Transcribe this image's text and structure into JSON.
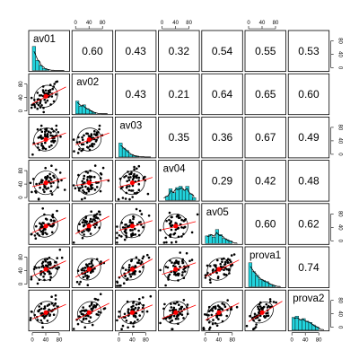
{
  "chart_data": {
    "type": "scatter",
    "subtype": "pairs-panel matrix",
    "variables": [
      "av01",
      "av02",
      "av03",
      "av04",
      "av05",
      "prova1",
      "prova2"
    ],
    "axis_ticks": [
      0,
      40,
      80
    ],
    "axis_range": [
      0,
      100
    ],
    "correlations": [
      [
        "",
        "0.60",
        "0.43",
        "0.32",
        "0.54",
        "0.55",
        "0.53"
      ],
      [
        "",
        "",
        "0.43",
        "0.21",
        "0.64",
        "0.65",
        "0.60"
      ],
      [
        "",
        "",
        "",
        "0.35",
        "0.36",
        "0.67",
        "0.49"
      ],
      [
        "",
        "",
        "",
        "",
        "0.29",
        "0.42",
        "0.48"
      ],
      [
        "",
        "",
        "",
        "",
        "",
        "0.60",
        "0.62"
      ],
      [
        "",
        "",
        "",
        "",
        "",
        "",
        "0.74"
      ],
      [
        "",
        "",
        "",
        "",
        "",
        "",
        ""
      ]
    ],
    "histograms": {
      "av01": [
        0.95,
        0.4,
        0.2,
        0.08,
        0.04,
        0.0,
        0.0,
        0.0,
        0.0,
        0.0
      ],
      "av02": [
        0.5,
        0.3,
        0.35,
        0.2,
        0.12,
        0.05,
        0.0,
        0.0,
        0.0,
        0.0
      ],
      "av03": [
        0.55,
        0.35,
        0.25,
        0.1,
        0.05,
        0.03,
        0.0,
        0.0,
        0.0,
        0.0
      ],
      "av04": [
        0.0,
        0.15,
        0.45,
        0.3,
        0.5,
        0.55,
        0.4,
        0.55,
        0.25,
        0.1
      ],
      "av05": [
        0.3,
        0.35,
        0.25,
        0.55,
        0.35,
        0.2,
        0.15,
        0.1,
        0.0,
        0.0
      ],
      "prova1": [
        0.95,
        0.6,
        0.45,
        0.3,
        0.25,
        0.2,
        0.1,
        0.05,
        0.0,
        0.0
      ],
      "prova2": [
        0.5,
        0.55,
        0.4,
        0.45,
        0.35,
        0.3,
        0.2,
        0.12,
        0.0,
        0.0
      ]
    },
    "colors": {
      "histogram_fill": "#22d3dd",
      "density_line": "#000000",
      "loess_line": "#ff0000",
      "mean_point": "#ff0000",
      "ellipse": "#000000",
      "points": "#000000"
    }
  }
}
